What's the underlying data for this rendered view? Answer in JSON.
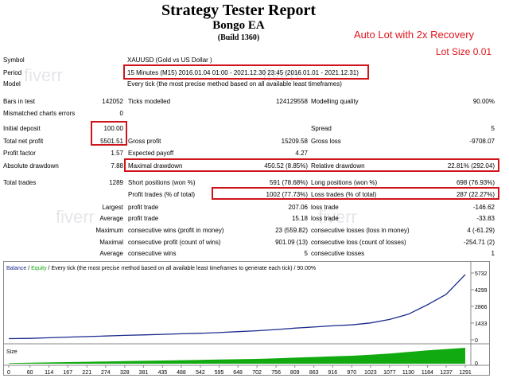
{
  "header": {
    "title": "Strategy Tester Report",
    "ea_name": "Bongo EA",
    "build": "(Build 1360)"
  },
  "promo": {
    "line1": "Auto Lot with 2x Recovery",
    "line2": "Lot Size 0.01",
    "color": "#e0141c"
  },
  "watermark": "fiverr",
  "info": {
    "symbol_label": "Symbol",
    "symbol_value": "XAUUSD (Gold vs US Dollar )",
    "period_label": "Period",
    "period_value": "15 Minutes (M15) 2016.01.04 01:00 - 2021.12.30 23:45 (2016.01.01 - 2021.12.31)",
    "model_label": "Model",
    "model_value": "Every tick (the most precise method based on all available least timeframes)"
  },
  "stats": {
    "bars_label": "Bars in test",
    "bars_value": "142052",
    "ticks_label": "Ticks modelled",
    "ticks_value": "124129558",
    "quality_label": "Modelling quality",
    "quality_value": "90.00%",
    "mismatch_label": "Mismatched charts errors",
    "mismatch_value": "0",
    "deposit_label": "Initial deposit",
    "deposit_value": "100.00",
    "spread_label": "Spread",
    "spread_value": "5",
    "netprofit_label": "Total net profit",
    "netprofit_value": "5501.51",
    "grossprofit_label": "Gross profit",
    "grossprofit_value": "15209.58",
    "grossloss_label": "Gross loss",
    "grossloss_value": "-9708.07",
    "pf_label": "Profit factor",
    "pf_value": "1.57",
    "ep_label": "Expected payoff",
    "ep_value": "4.27",
    "absdd_label": "Absolute drawdown",
    "absdd_value": "7.88",
    "maxdd_label": "Maximal drawdown",
    "maxdd_value": "450.52 (8.85%)",
    "reldd_label": "Relative drawdown",
    "reldd_value": "22.81% (292.04)",
    "trades_label": "Total trades",
    "trades_value": "1289",
    "short_label": "Short positions (won %)",
    "short_value": "591 (78.68%)",
    "long_label": "Long positions (won %)",
    "long_value": "698 (76.93%)",
    "pt_label": "Profit trades (% of total)",
    "pt_value": "1002 (77.73%)",
    "lt_label": "Loss trades (% of total)",
    "lt_value": "287 (22.27%)",
    "largest_label": "Largest",
    "lp_label": "profit trade",
    "lp_value": "207.06",
    "ll_label": "loss trade",
    "ll_value": "-146.62",
    "average_label": "Average",
    "ap_label": "profit trade",
    "ap_value": "15.18",
    "al_label": "loss trade",
    "al_value": "-33.83",
    "maximum_label": "Maximum",
    "mcw_label": "consecutive wins (profit in money)",
    "mcw_value": "23 (559.82)",
    "mcl_label": "consecutive losses (loss in money)",
    "mcl_value": "4 (-61.29)",
    "maximal_label": "Maximal",
    "mcp_label": "consecutive profit (count of wins)",
    "mcp_value": "901.09 (13)",
    "mcloss_label": "consecutive loss (count of losses)",
    "mcloss_value": "-254.71 (2)",
    "average2_label": "Average",
    "acw_label": "consecutive wins",
    "acw_value": "5",
    "acl_label": "consecutive losses",
    "acl_value": "1"
  },
  "chart_data": {
    "type": "line",
    "legend_balance": "Balance",
    "legend_sep": " / ",
    "legend_equity": "Equity",
    "legend_rest": " / Every tick (the most precise method based on all available least timeframes to generate each tick) / 90.00%",
    "size_label": "Size",
    "y_ticks": [
      "5732",
      "4299",
      "2866",
      "1433",
      "0"
    ],
    "size_ticks": [
      "0"
    ],
    "x_ticks": [
      "0",
      "60",
      "114",
      "167",
      "221",
      "274",
      "328",
      "381",
      "435",
      "488",
      "542",
      "595",
      "648",
      "702",
      "756",
      "809",
      "863",
      "916",
      "970",
      "1023",
      "1077",
      "1130",
      "1184",
      "1237",
      "1291"
    ],
    "balance_color": "#1b2a8c",
    "size_color": "#11aa11",
    "ylim": [
      0,
      5732
    ],
    "xlim": [
      0,
      1291
    ],
    "series": [
      {
        "x": [
          0,
          60,
          114,
          167,
          221,
          274,
          328,
          381,
          435,
          488,
          542,
          595,
          648,
          702,
          756,
          809,
          863,
          916,
          970,
          1023,
          1077,
          1130,
          1184,
          1237,
          1291
        ],
        "values": [
          100,
          120,
          180,
          230,
          280,
          330,
          380,
          420,
          470,
          520,
          560,
          620,
          700,
          780,
          880,
          1000,
          1100,
          1200,
          1280,
          1450,
          1750,
          2200,
          3000,
          3900,
          5600
        ]
      }
    ],
    "size_values": [
      0.04,
      0.06,
      0.08,
      0.1,
      0.12,
      0.14,
      0.16,
      0.18,
      0.2,
      0.22,
      0.24,
      0.26,
      0.28,
      0.3,
      0.34,
      0.38,
      0.42,
      0.46,
      0.5,
      0.56,
      0.64,
      0.74,
      0.84,
      0.92,
      1.0
    ]
  }
}
